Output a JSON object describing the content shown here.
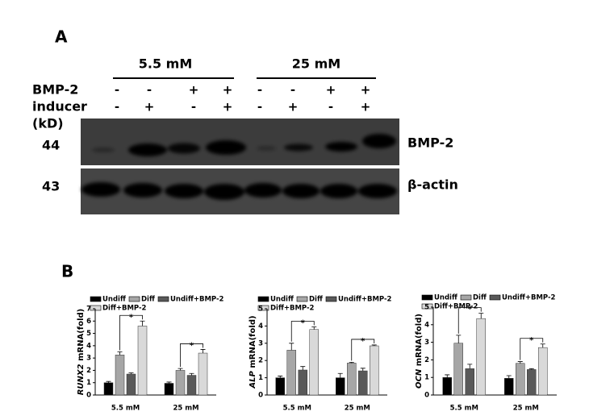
{
  "panel_a": {
    "label": "A",
    "groups": [
      "5.5 mM",
      "25 mM"
    ],
    "row_labels": {
      "bmp2": "BMP-2",
      "inducer": "inducer",
      "kd": "(kD)"
    },
    "bmp2": [
      "-",
      "-",
      "+",
      "+",
      "-",
      "-",
      "+",
      "+"
    ],
    "inducer": [
      "-",
      "+",
      "-",
      "+",
      "-",
      "+",
      "-",
      "+"
    ],
    "markers": [
      "44",
      "43"
    ],
    "proteins": [
      "BMP-2",
      "β-actin"
    ]
  },
  "panel_b": {
    "label": "B"
  },
  "chart_data": [
    {
      "type": "bar",
      "gene": "RUNX2",
      "ylabel": "mRNA(fold)",
      "categories": [
        "5.5 mM",
        "25 mM"
      ],
      "series": [
        {
          "name": "Undiff",
          "color": "#000000",
          "values": [
            1.0,
            0.95
          ],
          "errors": [
            0.1,
            0.1
          ]
        },
        {
          "name": "Diff",
          "color": "#a6a6a6",
          "values": [
            3.25,
            2.0
          ],
          "errors": [
            0.25,
            0.15
          ]
        },
        {
          "name": "Undiff+BMP-2",
          "color": "#595959",
          "values": [
            1.7,
            1.6
          ],
          "errors": [
            0.1,
            0.15
          ]
        },
        {
          "name": "Diff+BMP-2",
          "color": "#d9d9d9",
          "values": [
            5.6,
            3.4
          ],
          "errors": [
            0.4,
            0.3
          ]
        }
      ],
      "ylim": [
        0,
        7
      ],
      "yticks": [
        0,
        1,
        2,
        3,
        4,
        5,
        6,
        7
      ],
      "annotations": [
        "*",
        "*"
      ]
    },
    {
      "type": "bar",
      "gene": "ALP",
      "ylabel": "mRNA(fold)",
      "categories": [
        "5.5 mM",
        "25 mM"
      ],
      "series": [
        {
          "name": "Undiff",
          "color": "#000000",
          "values": [
            1.0,
            1.0
          ],
          "errors": [
            0.1,
            0.25
          ]
        },
        {
          "name": "Diff",
          "color": "#a6a6a6",
          "values": [
            2.6,
            1.85
          ],
          "errors": [
            0.4,
            0.05
          ]
        },
        {
          "name": "Undiff+BMP-2",
          "color": "#595959",
          "values": [
            1.45,
            1.4
          ],
          "errors": [
            0.2,
            0.15
          ]
        },
        {
          "name": "Diff+BMP-2",
          "color": "#d9d9d9",
          "values": [
            3.8,
            2.85
          ],
          "errors": [
            0.15,
            0.05
          ]
        }
      ],
      "ylim": [
        0,
        5
      ],
      "yticks": [
        0,
        1,
        2,
        3,
        4,
        5
      ],
      "annotations": [
        "*",
        "*"
      ]
    },
    {
      "type": "bar",
      "gene": "OCN",
      "ylabel": "mRNA(fold)",
      "categories": [
        "5.5 mM",
        "25 mM"
      ],
      "series": [
        {
          "name": "Undiff",
          "color": "#000000",
          "values": [
            1.0,
            0.95
          ],
          "errors": [
            0.15,
            0.15
          ]
        },
        {
          "name": "Diff",
          "color": "#a6a6a6",
          "values": [
            2.95,
            1.8
          ],
          "errors": [
            0.45,
            0.1
          ]
        },
        {
          "name": "Undiff+BMP-2",
          "color": "#595959",
          "values": [
            1.5,
            1.45
          ],
          "errors": [
            0.25,
            0.05
          ]
        },
        {
          "name": "Diff+BMP-2",
          "color": "#d9d9d9",
          "values": [
            4.35,
            2.7
          ],
          "errors": [
            0.3,
            0.2
          ]
        }
      ],
      "ylim": [
        0,
        5
      ],
      "yticks": [
        0,
        1,
        2,
        3,
        4,
        5
      ],
      "annotations": [
        "*",
        "*"
      ]
    }
  ]
}
